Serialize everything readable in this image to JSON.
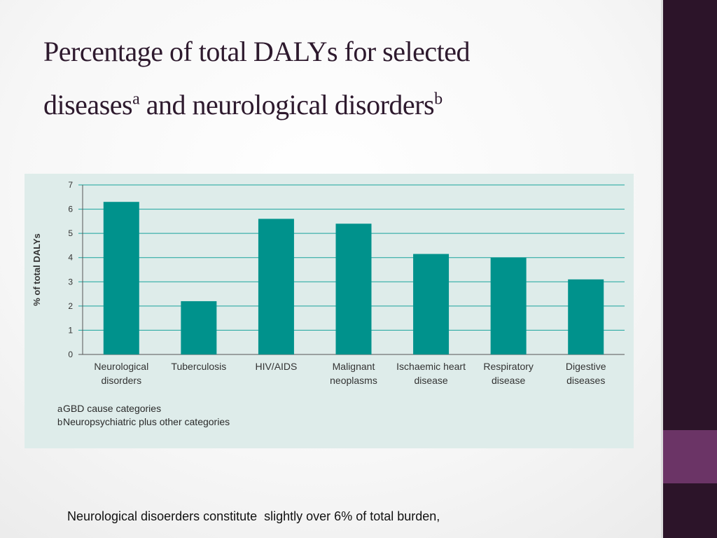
{
  "slide": {
    "title_line1": "Percentage of total DALYs for selected",
    "title_line2_a": "diseases",
    "title_sup_a": "a",
    "title_line2_b": " and neurological disorders",
    "title_sup_b": "b",
    "caption": "Neurological disoerders constitute  slightly over 6% of total burden,"
  },
  "colors": {
    "bar": "#00928c",
    "gridline": "#1aa39c",
    "sidebar": "#2c1429",
    "sidebar_accent": "#6b3466"
  },
  "chart_data": {
    "type": "bar",
    "title": "",
    "xlabel": "",
    "ylabel": "% of total DALYs",
    "ylim": [
      0,
      7
    ],
    "yticks": [
      0,
      1,
      2,
      3,
      4,
      5,
      6,
      7
    ],
    "grid": true,
    "categories": [
      [
        "Neurological",
        "disorders"
      ],
      [
        "Tuberculosis"
      ],
      [
        "HIV/AIDS"
      ],
      [
        "Malignant",
        "neoplasms"
      ],
      [
        "Ischaemic heart",
        "disease"
      ],
      [
        "Respiratory",
        "disease"
      ],
      [
        "Digestive",
        "diseases"
      ]
    ],
    "values": [
      6.3,
      2.2,
      5.6,
      5.4,
      4.15,
      4.0,
      3.1
    ],
    "footnotes": [
      {
        "mark": "a",
        "text": "GBD cause categories"
      },
      {
        "mark": "b",
        "text": "Neuropsychiatric plus other categories"
      }
    ]
  }
}
